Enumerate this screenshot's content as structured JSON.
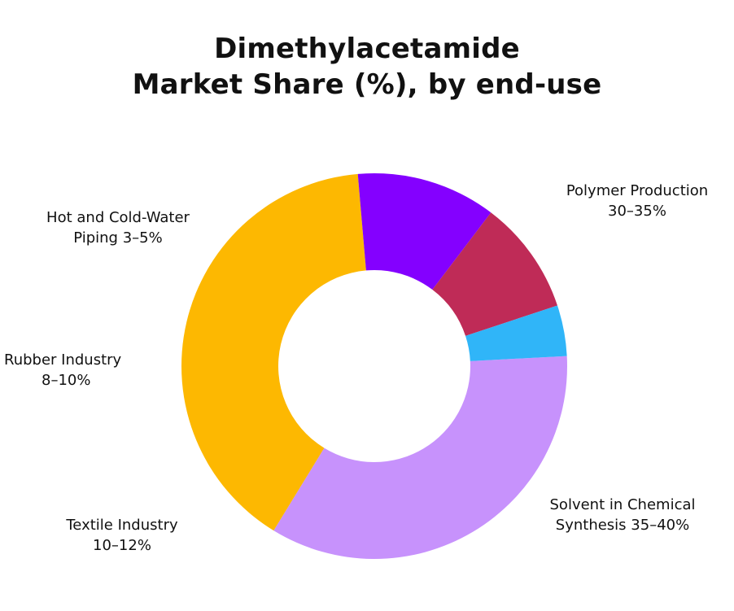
{
  "chart_data": {
    "type": "pie",
    "variant": "donut",
    "title_lines": [
      "Dimethylacetamide",
      "Market Share (%), by end-use"
    ],
    "slices": [
      {
        "label": [
          "Polymer Production",
          "30–35%"
        ],
        "value": 32.5,
        "color": "#c792fc"
      },
      {
        "label": [
          "Solvent in Chemical",
          "Synthesis 35–40%"
        ],
        "value": 37.5,
        "color": "#fdb801"
      },
      {
        "label": [
          "Textile Industry",
          "10–12%"
        ],
        "value": 11,
        "color": "#8400ff"
      },
      {
        "label": [
          "Rubber Industry",
          "8–10%"
        ],
        "value": 9,
        "color": "#bf2b57"
      },
      {
        "label": [
          "Hot and Cold-Water",
          "Piping 3–5%"
        ],
        "value": 4,
        "color": "#30b5f8"
      }
    ],
    "legend": "none"
  }
}
